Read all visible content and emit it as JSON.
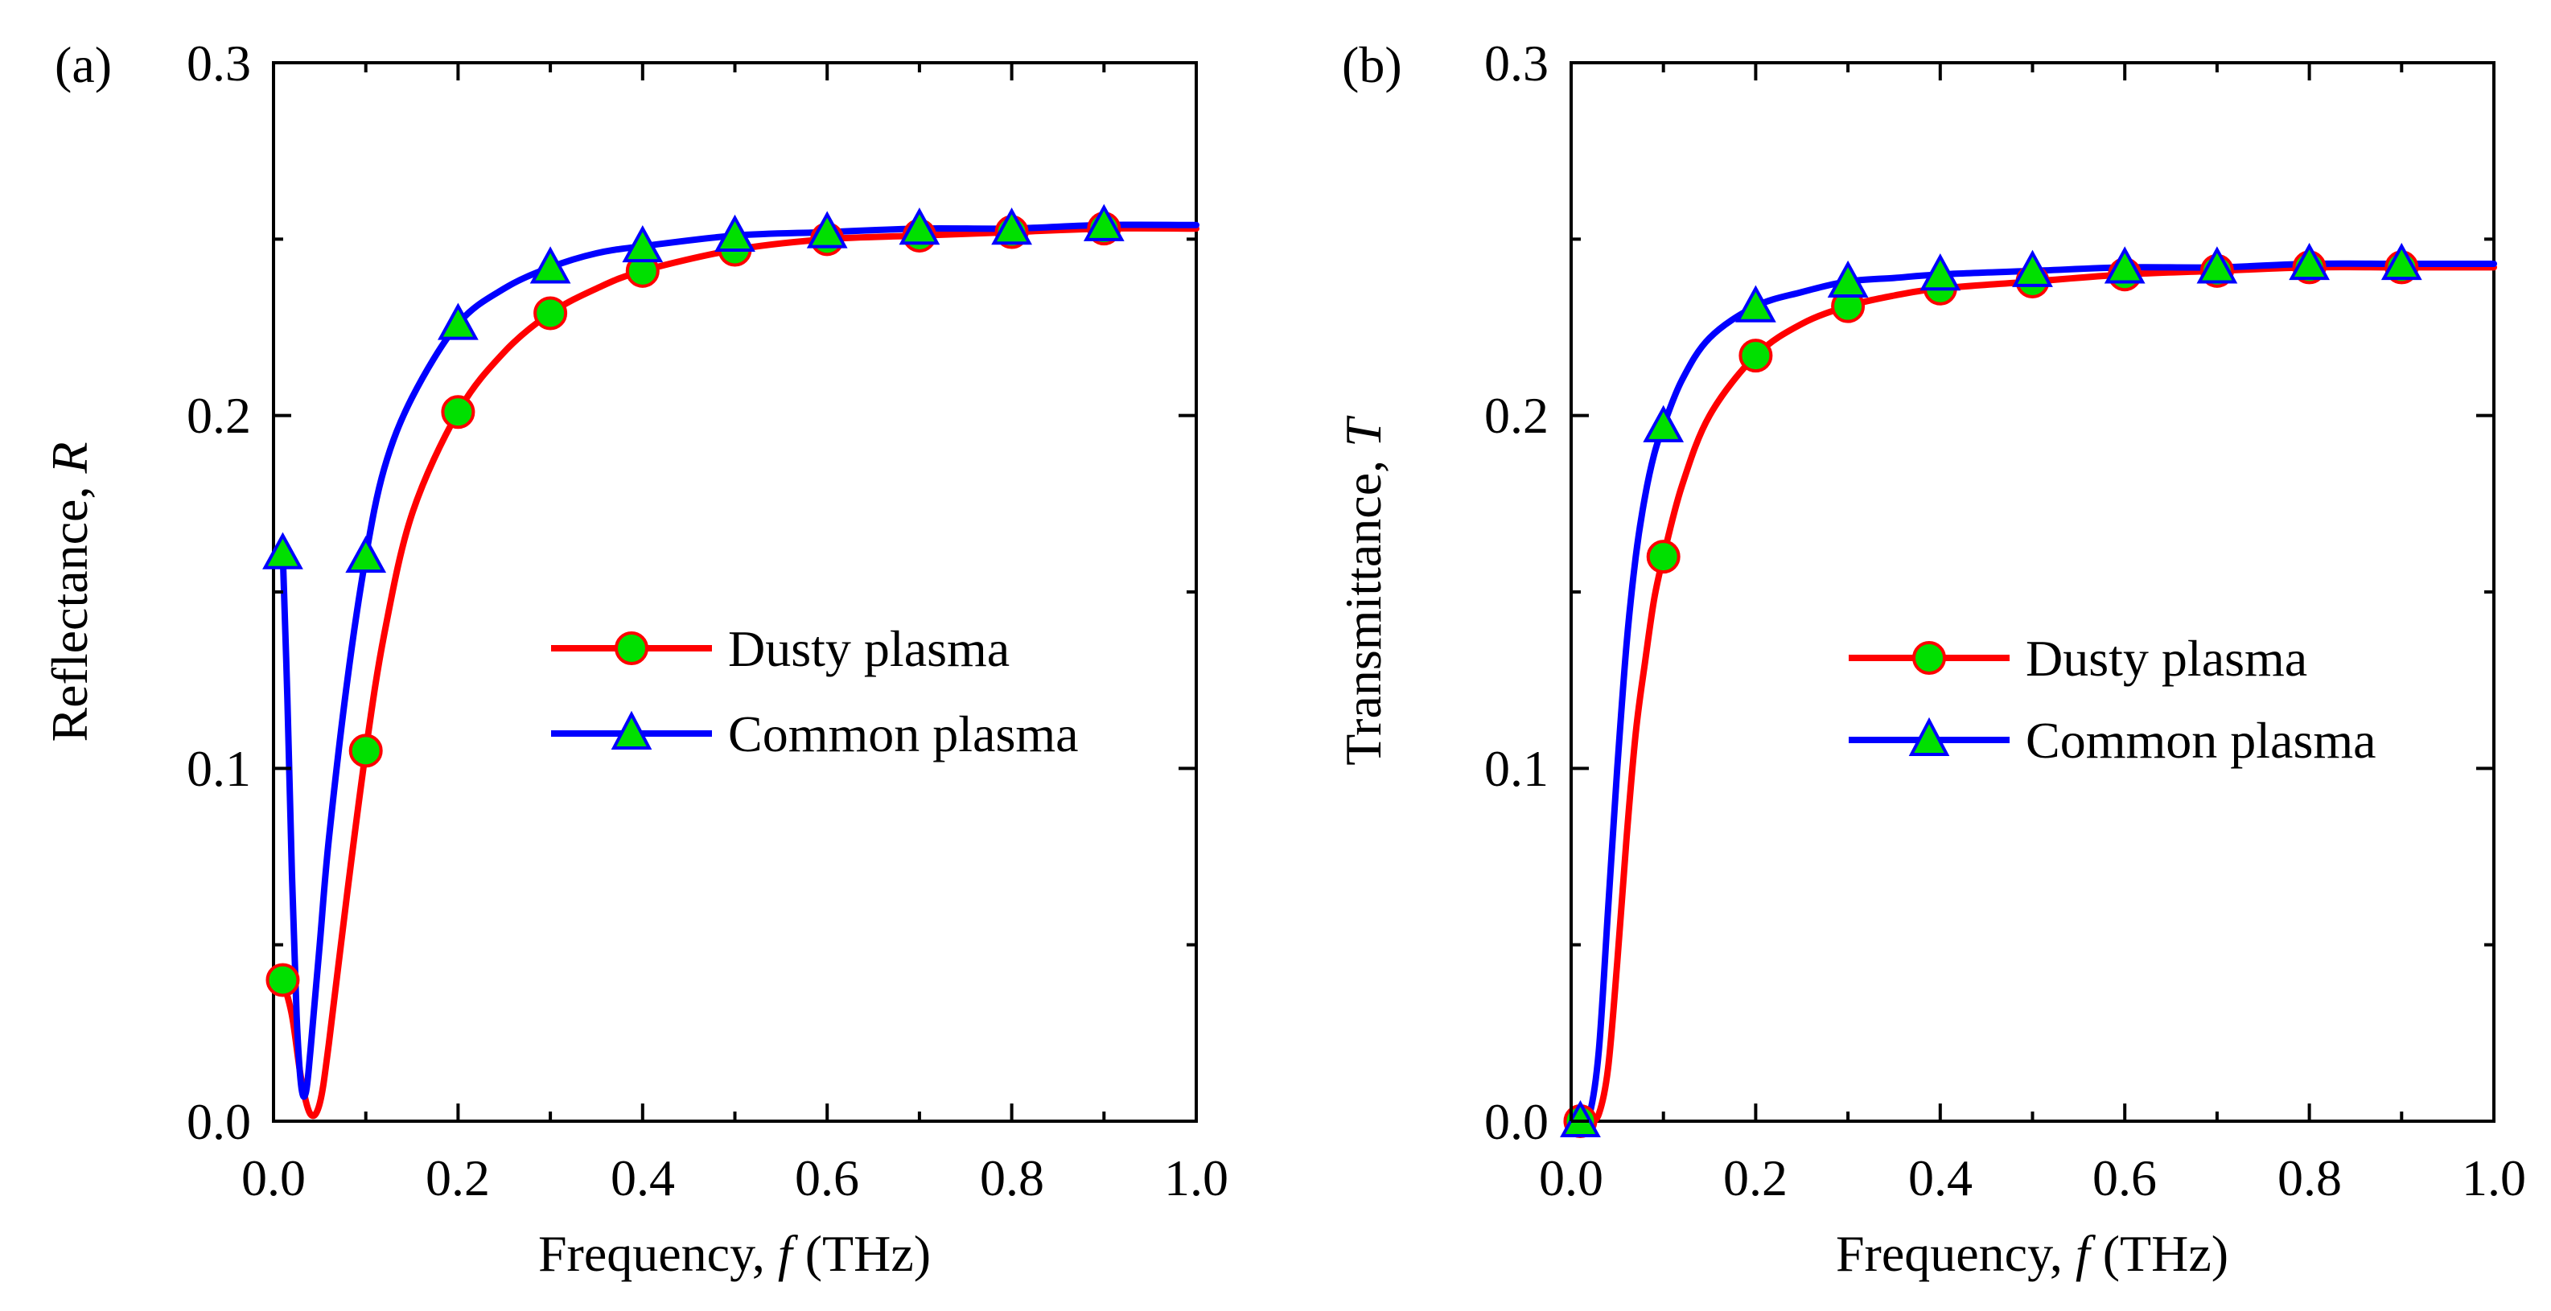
{
  "chart_data": [
    {
      "type": "line",
      "panel_label": "(a)",
      "xlabel_main": "Frequency, ",
      "xlabel_var": "f",
      "xlabel_unit": " (THz)",
      "ylabel_main": "Reflectance, ",
      "ylabel_var": "R",
      "xlim": [
        0.0,
        1.0
      ],
      "ylim": [
        0.0,
        0.3
      ],
      "x_ticks": [
        "0.0",
        "0.2",
        "0.4",
        "0.6",
        "0.8",
        "1.0"
      ],
      "y_ticks": [
        "0.0",
        "0.1",
        "0.2",
        "0.3"
      ],
      "legend_position": "center-right",
      "grid": false,
      "series": [
        {
          "name": "Dusty plasma",
          "color": "#ff0000",
          "marker": "circle",
          "marker_fill": "#00e000",
          "x": [
            0.01,
            0.02,
            0.03,
            0.04,
            0.05,
            0.06,
            0.08,
            0.1,
            0.12,
            0.15,
            0.2,
            0.25,
            0.3,
            0.35,
            0.4,
            0.5,
            0.6,
            0.7,
            0.8,
            0.9,
            1.0
          ],
          "y": [
            0.04,
            0.03,
            0.012,
            0.002,
            0.005,
            0.022,
            0.065,
            0.105,
            0.138,
            0.172,
            0.201,
            0.218,
            0.229,
            0.236,
            0.241,
            0.247,
            0.25,
            0.251,
            0.252,
            0.253,
            0.253
          ],
          "marker_x": [
            0.01,
            0.1,
            0.2,
            0.3,
            0.4,
            0.5,
            0.6,
            0.7,
            0.8,
            0.9
          ],
          "marker_y": [
            0.04,
            0.105,
            0.201,
            0.229,
            0.241,
            0.247,
            0.25,
            0.251,
            0.252,
            0.253
          ]
        },
        {
          "name": "Common plasma",
          "color": "#0000ff",
          "marker": "triangle",
          "marker_fill": "#00e000",
          "x": [
            0.01,
            0.015,
            0.02,
            0.025,
            0.03,
            0.035,
            0.04,
            0.05,
            0.06,
            0.08,
            0.1,
            0.12,
            0.15,
            0.2,
            0.25,
            0.3,
            0.35,
            0.4,
            0.5,
            0.6,
            0.7,
            0.8,
            0.9,
            1.0
          ],
          "y": [
            0.161,
            0.12,
            0.07,
            0.03,
            0.01,
            0.008,
            0.02,
            0.05,
            0.08,
            0.125,
            0.16,
            0.185,
            0.205,
            0.226,
            0.236,
            0.242,
            0.246,
            0.248,
            0.251,
            0.252,
            0.253,
            0.253,
            0.254,
            0.254
          ],
          "marker_x": [
            0.01,
            0.1,
            0.2,
            0.3,
            0.4,
            0.5,
            0.6,
            0.7,
            0.8,
            0.9
          ],
          "marker_y": [
            0.161,
            0.16,
            0.226,
            0.242,
            0.248,
            0.251,
            0.252,
            0.253,
            0.253,
            0.254
          ]
        }
      ]
    },
    {
      "type": "line",
      "panel_label": "(b)",
      "xlabel_main": "Frequency, ",
      "xlabel_var": "f",
      "xlabel_unit": " (THz)",
      "ylabel_main": "Transmittance, ",
      "ylabel_var": "T",
      "xlim": [
        0.0,
        1.0
      ],
      "ylim": [
        0.0,
        0.3
      ],
      "x_ticks": [
        "0.0",
        "0.2",
        "0.4",
        "0.6",
        "0.8",
        "1.0"
      ],
      "y_ticks": [
        "0.0",
        "0.1",
        "0.2",
        "0.3"
      ],
      "legend_position": "center-right",
      "grid": false,
      "series": [
        {
          "name": "Dusty plasma",
          "color": "#ff0000",
          "marker": "circle",
          "marker_fill": "#00e000",
          "x": [
            0.01,
            0.02,
            0.03,
            0.04,
            0.05,
            0.06,
            0.07,
            0.08,
            0.09,
            0.1,
            0.12,
            0.15,
            0.2,
            0.25,
            0.3,
            0.35,
            0.4,
            0.5,
            0.6,
            0.7,
            0.8,
            0.9,
            1.0
          ],
          "y": [
            0.0,
            0.0,
            0.002,
            0.015,
            0.045,
            0.08,
            0.11,
            0.13,
            0.148,
            0.16,
            0.18,
            0.2,
            0.217,
            0.226,
            0.231,
            0.234,
            0.236,
            0.238,
            0.24,
            0.241,
            0.242,
            0.242,
            0.242
          ],
          "marker_x": [
            0.01,
            0.1,
            0.2,
            0.3,
            0.4,
            0.5,
            0.6,
            0.7,
            0.8,
            0.9
          ],
          "marker_y": [
            0.0,
            0.16,
            0.217,
            0.231,
            0.236,
            0.238,
            0.24,
            0.241,
            0.242,
            0.242
          ]
        },
        {
          "name": "Common plasma",
          "color": "#0000ff",
          "marker": "triangle",
          "marker_fill": "#00e000",
          "x": [
            0.01,
            0.02,
            0.03,
            0.04,
            0.05,
            0.06,
            0.07,
            0.08,
            0.09,
            0.1,
            0.12,
            0.15,
            0.2,
            0.25,
            0.3,
            0.35,
            0.4,
            0.5,
            0.6,
            0.7,
            0.8,
            0.9,
            1.0
          ],
          "y": [
            0.0,
            0.002,
            0.02,
            0.06,
            0.1,
            0.135,
            0.16,
            0.177,
            0.189,
            0.197,
            0.21,
            0.222,
            0.231,
            0.235,
            0.238,
            0.239,
            0.24,
            0.241,
            0.242,
            0.242,
            0.243,
            0.243,
            0.243
          ],
          "marker_x": [
            0.01,
            0.1,
            0.2,
            0.3,
            0.4,
            0.5,
            0.6,
            0.7,
            0.8,
            0.9
          ],
          "marker_y": [
            0.0,
            0.197,
            0.231,
            0.238,
            0.24,
            0.241,
            0.242,
            0.242,
            0.243,
            0.243
          ]
        }
      ]
    }
  ]
}
